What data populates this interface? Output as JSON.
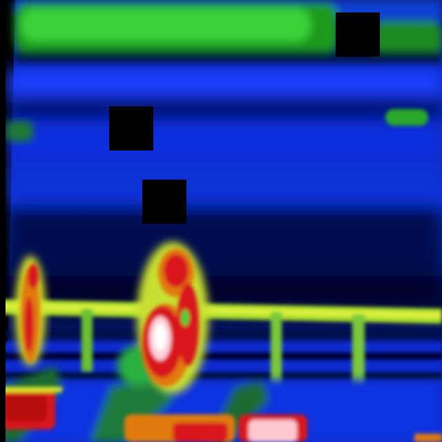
{
  "image": {
    "kind": "thermal-camera-frame",
    "palette": {
      "cold": "#000010",
      "deep_blue": "#001a8c",
      "blue": "#0a34e0",
      "green": "#3ad13a",
      "yellow": "#d8e62a",
      "orange": "#e07a10",
      "red": "#d8141e",
      "white": "#ffe8ec"
    },
    "masked_regions": 4
  }
}
